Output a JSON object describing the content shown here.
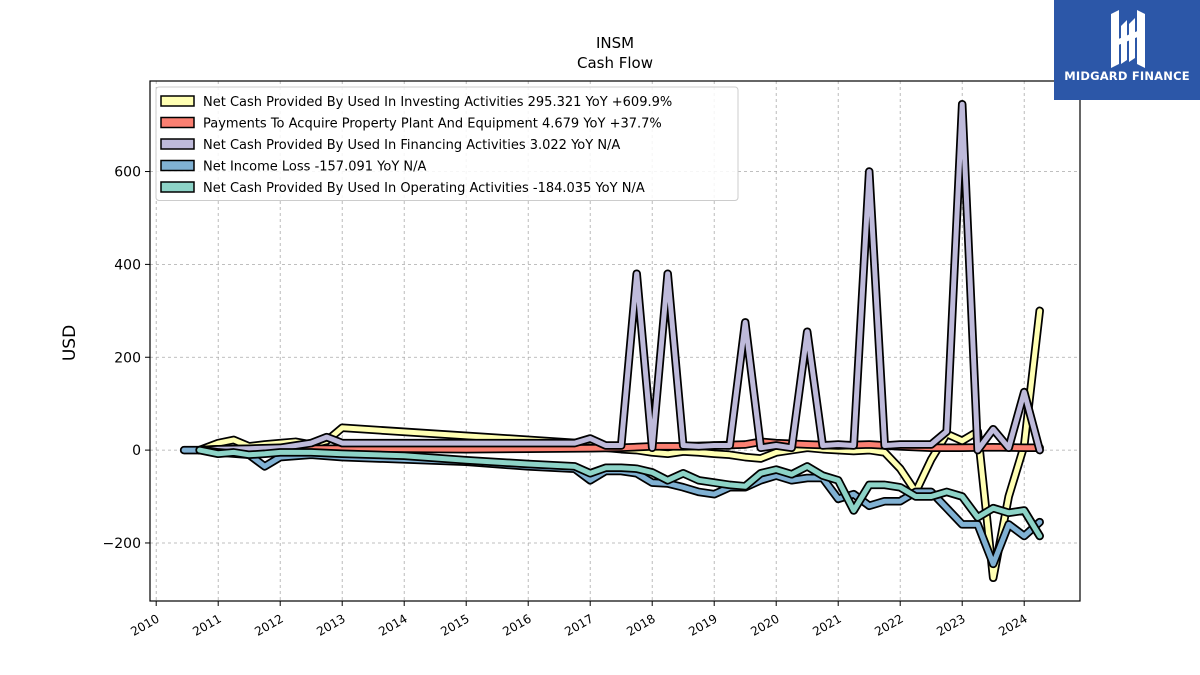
{
  "brand": {
    "name": "MIDGARD FINANCE",
    "bg_color": "#2c57a8"
  },
  "chart_data": {
    "type": "line",
    "title": "INSM",
    "subtitle": "Cash Flow",
    "ylabel": "USD",
    "xlabel": "",
    "xlim": [
      2009.9,
      2024.9
    ],
    "ylim": [
      -325,
      795
    ],
    "x_ticks": [
      2010,
      2011,
      2012,
      2013,
      2014,
      2015,
      2016,
      2017,
      2018,
      2019,
      2020,
      2021,
      2022,
      2023,
      2024
    ],
    "x_tick_labels": [
      "2010",
      "2011",
      "2012",
      "2013",
      "2014",
      "2015",
      "2016",
      "2017",
      "2018",
      "2019",
      "2020",
      "2021",
      "2022",
      "2023",
      "2024"
    ],
    "y_ticks": [
      -200,
      0,
      200,
      400,
      600
    ],
    "y_tick_labels": [
      "−200",
      "0",
      "200",
      "400",
      "600"
    ],
    "grid": true,
    "legend_position": "top-left",
    "series": [
      {
        "name": "Net Cash Provided By Used In Investing Activities",
        "legend_label": "Net Cash Provided By Used In Investing Activities  295.321 YoY +609.9%",
        "color": "#ffffb3",
        "points": [
          [
            2010.7,
            0
          ],
          [
            2011,
            15
          ],
          [
            2011.25,
            22
          ],
          [
            2011.5,
            8
          ],
          [
            2011.75,
            12
          ],
          [
            2012,
            15
          ],
          [
            2012.25,
            18
          ],
          [
            2012.5,
            12
          ],
          [
            2012.75,
            20
          ],
          [
            2013,
            48
          ],
          [
            2016.8,
            15
          ],
          [
            2017,
            20
          ],
          [
            2017.25,
            5
          ],
          [
            2017.5,
            2
          ],
          [
            2017.75,
            0
          ],
          [
            2018,
            -5
          ],
          [
            2018.25,
            -8
          ],
          [
            2018.5,
            -3
          ],
          [
            2018.75,
            -5
          ],
          [
            2019,
            -8
          ],
          [
            2019.25,
            -10
          ],
          [
            2019.5,
            -15
          ],
          [
            2019.75,
            -18
          ],
          [
            2020,
            -5
          ],
          [
            2020.25,
            0
          ],
          [
            2020.5,
            5
          ],
          [
            2020.75,
            2
          ],
          [
            2021,
            0
          ],
          [
            2021.25,
            -2
          ],
          [
            2021.5,
            0
          ],
          [
            2021.75,
            -5
          ],
          [
            2022,
            -40
          ],
          [
            2022.25,
            -90
          ],
          [
            2022.5,
            -20
          ],
          [
            2022.75,
            35
          ],
          [
            2023,
            20
          ],
          [
            2023.25,
            40
          ],
          [
            2023.5,
            -275
          ],
          [
            2023.75,
            -100
          ],
          [
            2024,
            10
          ],
          [
            2024.25,
            300
          ]
        ]
      },
      {
        "name": "Payments To Acquire Property Plant And Equipment",
        "legend_label": "Payments To Acquire Property Plant And Equipment  4.679 YoY +37.7%",
        "color": "#fb8072",
        "points": [
          [
            2010.7,
            0
          ],
          [
            2011,
            2
          ],
          [
            2012,
            3
          ],
          [
            2013,
            3
          ],
          [
            2014,
            3
          ],
          [
            2015,
            2
          ],
          [
            2016,
            3
          ],
          [
            2017,
            4
          ],
          [
            2017.5,
            5
          ],
          [
            2018,
            8
          ],
          [
            2018.5,
            8
          ],
          [
            2019,
            10
          ],
          [
            2019.5,
            12
          ],
          [
            2019.75,
            18
          ],
          [
            2020,
            15
          ],
          [
            2020.5,
            12
          ],
          [
            2021,
            10
          ],
          [
            2021.5,
            12
          ],
          [
            2022,
            8
          ],
          [
            2022.5,
            5
          ],
          [
            2023,
            5
          ],
          [
            2023.5,
            6
          ],
          [
            2024,
            5
          ],
          [
            2024.25,
            5
          ]
        ]
      },
      {
        "name": "Net Cash Provided By Used In Financing Activities",
        "legend_label": "Net Cash Provided By Used In Financing Activities  3.022 YoY N/A",
        "color": "#bebada",
        "points": [
          [
            2010.7,
            0
          ],
          [
            2011,
            2
          ],
          [
            2011.5,
            3
          ],
          [
            2012,
            5
          ],
          [
            2012.5,
            15
          ],
          [
            2012.75,
            28
          ],
          [
            2013,
            15
          ],
          [
            2016.75,
            15
          ],
          [
            2017,
            25
          ],
          [
            2017.25,
            10
          ],
          [
            2017.5,
            10
          ],
          [
            2017.75,
            380
          ],
          [
            2018,
            5
          ],
          [
            2018.25,
            380
          ],
          [
            2018.5,
            10
          ],
          [
            2018.75,
            8
          ],
          [
            2019,
            10
          ],
          [
            2019.25,
            10
          ],
          [
            2019.5,
            275
          ],
          [
            2019.75,
            5
          ],
          [
            2020,
            10
          ],
          [
            2020.25,
            5
          ],
          [
            2020.5,
            255
          ],
          [
            2020.75,
            10
          ],
          [
            2021,
            12
          ],
          [
            2021.25,
            10
          ],
          [
            2021.5,
            600
          ],
          [
            2021.75,
            10
          ],
          [
            2022,
            12
          ],
          [
            2022.5,
            12
          ],
          [
            2022.75,
            40
          ],
          [
            2023,
            745
          ],
          [
            2023.25,
            0
          ],
          [
            2023.5,
            45
          ],
          [
            2023.75,
            5
          ],
          [
            2024,
            125
          ],
          [
            2024.25,
            0
          ]
        ]
      },
      {
        "name": "Net Income Loss",
        "legend_label": "Net Income Loss  -157.091 YoY N/A",
        "color": "#80b1d3",
        "points": [
          [
            2010.45,
            0
          ],
          [
            2010.75,
            0
          ],
          [
            2011,
            -5
          ],
          [
            2011.5,
            -10
          ],
          [
            2011.75,
            -35
          ],
          [
            2012,
            -15
          ],
          [
            2012.5,
            -10
          ],
          [
            2013,
            -15
          ],
          [
            2014,
            -20
          ],
          [
            2015,
            -25
          ],
          [
            2016,
            -35
          ],
          [
            2016.75,
            -40
          ],
          [
            2017,
            -65
          ],
          [
            2017.25,
            -45
          ],
          [
            2017.5,
            -45
          ],
          [
            2017.75,
            -50
          ],
          [
            2018,
            -70
          ],
          [
            2018.25,
            -72
          ],
          [
            2018.5,
            -80
          ],
          [
            2018.75,
            -90
          ],
          [
            2019,
            -95
          ],
          [
            2019.25,
            -80
          ],
          [
            2019.5,
            -80
          ],
          [
            2019.75,
            -65
          ],
          [
            2020,
            -55
          ],
          [
            2020.25,
            -65
          ],
          [
            2020.5,
            -60
          ],
          [
            2020.75,
            -60
          ],
          [
            2021,
            -105
          ],
          [
            2021.25,
            -95
          ],
          [
            2021.5,
            -120
          ],
          [
            2021.75,
            -110
          ],
          [
            2022,
            -110
          ],
          [
            2022.25,
            -90
          ],
          [
            2022.5,
            -90
          ],
          [
            2022.75,
            -125
          ],
          [
            2023,
            -160
          ],
          [
            2023.25,
            -160
          ],
          [
            2023.5,
            -245
          ],
          [
            2023.75,
            -160
          ],
          [
            2024,
            -185
          ],
          [
            2024.25,
            -155
          ]
        ]
      },
      {
        "name": "Net Cash Provided By Used In Operating Activities",
        "legend_label": "Net Cash Provided By Used In Operating Activities  -184.035 YoY N/A",
        "color": "#8dd3c7",
        "points": [
          [
            2010.7,
            0
          ],
          [
            2011,
            -8
          ],
          [
            2011.25,
            -5
          ],
          [
            2011.5,
            -10
          ],
          [
            2011.75,
            -8
          ],
          [
            2012,
            -5
          ],
          [
            2012.5,
            -5
          ],
          [
            2013,
            -8
          ],
          [
            2014,
            -12
          ],
          [
            2015,
            -22
          ],
          [
            2016,
            -30
          ],
          [
            2016.75,
            -35
          ],
          [
            2017,
            -50
          ],
          [
            2017.25,
            -38
          ],
          [
            2017.5,
            -38
          ],
          [
            2017.75,
            -40
          ],
          [
            2018,
            -48
          ],
          [
            2018.25,
            -65
          ],
          [
            2018.5,
            -50
          ],
          [
            2018.75,
            -65
          ],
          [
            2019,
            -70
          ],
          [
            2019.25,
            -75
          ],
          [
            2019.5,
            -78
          ],
          [
            2019.75,
            -50
          ],
          [
            2020,
            -42
          ],
          [
            2020.25,
            -52
          ],
          [
            2020.5,
            -35
          ],
          [
            2020.75,
            -55
          ],
          [
            2021,
            -65
          ],
          [
            2021.25,
            -130
          ],
          [
            2021.5,
            -75
          ],
          [
            2021.75,
            -75
          ],
          [
            2022,
            -80
          ],
          [
            2022.25,
            -100
          ],
          [
            2022.5,
            -100
          ],
          [
            2022.75,
            -90
          ],
          [
            2023,
            -100
          ],
          [
            2023.25,
            -145
          ],
          [
            2023.5,
            -125
          ],
          [
            2023.75,
            -135
          ],
          [
            2024,
            -130
          ],
          [
            2024.25,
            -185
          ]
        ]
      }
    ]
  }
}
